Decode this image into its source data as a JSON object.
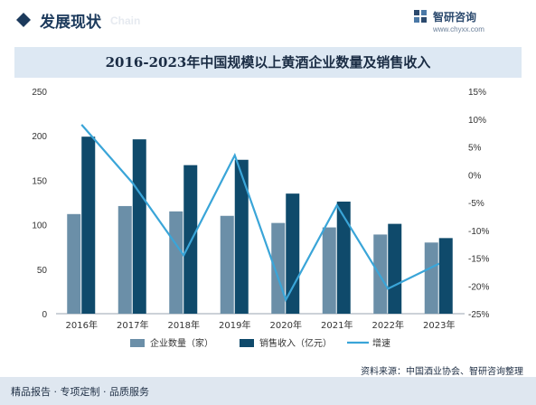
{
  "header": {
    "title": "发展现状",
    "watermark": "Chain",
    "brand_name": "智研咨询",
    "brand_url": "www.chyxx.com"
  },
  "footer": {
    "tagline": "精品报告 · 专项定制 · 品质服务",
    "source": "资料来源：中国酒业协会、智研咨询整理"
  },
  "colors": {
    "enterprises": "#6b8fa8",
    "revenue": "#0f4a6b",
    "growth": "#3aa5d8",
    "accent": "#2c4a6e"
  },
  "chart_data": {
    "type": "bar",
    "title": "2016-2023年中国规模以上黄酒企业数量及销售收入",
    "categories": [
      "2016年",
      "2017年",
      "2018年",
      "2019年",
      "2020年",
      "2021年",
      "2022年",
      "2023年"
    ],
    "series": [
      {
        "name": "企业数量（家）",
        "type": "bar",
        "axis": "left",
        "values": [
          112,
          121,
          115,
          110,
          102,
          97,
          89,
          80
        ]
      },
      {
        "name": "销售收入（亿元）",
        "type": "bar",
        "axis": "left",
        "values": [
          199,
          196,
          167,
          173,
          135,
          126,
          101,
          85
        ]
      },
      {
        "name": "增速",
        "type": "line",
        "axis": "right",
        "unit": "%",
        "values": [
          9,
          -1.5,
          -14.5,
          3.5,
          -22.5,
          -5.5,
          -20.5,
          -16
        ]
      }
    ],
    "y_left": {
      "min": 0,
      "max": 250,
      "ticks": [
        0,
        50,
        100,
        150,
        200,
        250
      ]
    },
    "y_right": {
      "min": -25,
      "max": 15,
      "ticks": [
        -25,
        -20,
        -15,
        -10,
        -5,
        0,
        5,
        10,
        15
      ]
    },
    "legend_position": "bottom",
    "grid": false
  }
}
